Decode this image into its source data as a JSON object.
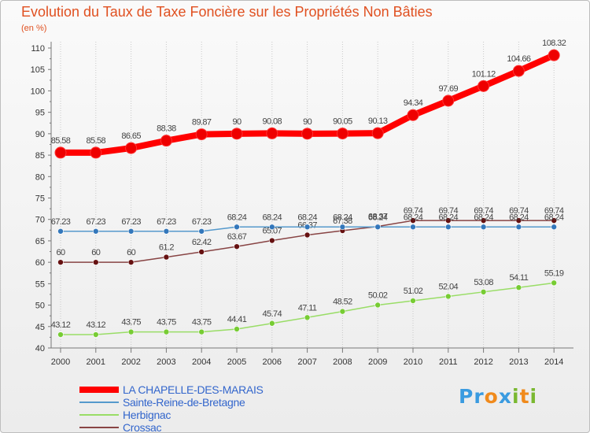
{
  "title": "Evolution du Taux de Taxe Foncière sur les Propriétés Non Bâties",
  "unit": "(en %)",
  "logo": {
    "parts": [
      "Pr",
      "o",
      "x",
      "i",
      "t",
      "i"
    ]
  },
  "chart_data": {
    "type": "line",
    "title": "Evolution du Taux de Taxe Foncière sur les Propriétés Non Bâties",
    "ylabel": "(en %)",
    "xlabel": "",
    "ylim": [
      40,
      110
    ],
    "yticks": [
      40,
      45,
      50,
      55,
      60,
      65,
      70,
      75,
      80,
      85,
      90,
      95,
      100,
      105,
      110
    ],
    "grid": "vertical dotted",
    "legend_position": "bottom-left",
    "categories": [
      "2000",
      "2001",
      "2002",
      "2003",
      "2004",
      "2005",
      "2006",
      "2007",
      "2008",
      "2009",
      "2010",
      "2011",
      "2012",
      "2013",
      "2014"
    ],
    "series": [
      {
        "name": "LA CHAPELLE-DES-MARAIS",
        "color": "#ff0000",
        "marker": "#ee0000",
        "thick": true,
        "values": [
          85.58,
          85.58,
          86.65,
          88.38,
          89.87,
          90,
          90.08,
          90,
          90.05,
          90.13,
          94.34,
          97.69,
          101.12,
          104.66,
          108.32
        ],
        "labels": [
          "85.58",
          "85.58",
          "86.65",
          "88.38",
          "89.87",
          "90",
          "90.08",
          "90",
          "90.05",
          "90.13",
          "94.34",
          "97.69",
          "101.12",
          "104.66",
          "108.32"
        ]
      },
      {
        "name": "Sainte-Reine-de-Bretagne",
        "color": "#5599cc",
        "marker": "#3377bb",
        "thick": false,
        "values": [
          67.23,
          67.23,
          67.23,
          67.23,
          67.23,
          68.24,
          68.24,
          68.24,
          68.24,
          68.24,
          68.24,
          68.24,
          68.24,
          68.24,
          68.24
        ],
        "labels": [
          "67.23",
          "67.23",
          "67.23",
          "67.23",
          "67.23",
          "68.24",
          "68.24",
          "68.24",
          "68.24",
          "68.24",
          "68.24",
          "68.24",
          "68.24",
          "68.24",
          "68.24"
        ]
      },
      {
        "name": "Herbignac",
        "color": "#99dd66",
        "marker": "#77cc33",
        "thick": false,
        "values": [
          43.12,
          43.12,
          43.75,
          43.75,
          43.75,
          44.41,
          45.74,
          47.11,
          48.52,
          50.02,
          51.02,
          52.04,
          53.08,
          54.11,
          55.19
        ],
        "labels": [
          "43.12",
          "43.12",
          "43.75",
          "43.75",
          "43.75",
          "44.41",
          "45.74",
          "47.11",
          "48.52",
          "50.02",
          "51.02",
          "52.04",
          "53.08",
          "54.11",
          "55.19"
        ]
      },
      {
        "name": "Crossac",
        "color": "#884444",
        "marker": "#661111",
        "thick": false,
        "values": [
          60,
          60,
          60,
          61.2,
          62.42,
          63.67,
          65.07,
          66.37,
          67.38,
          68.37,
          69.74,
          69.74,
          69.74,
          69.74,
          69.74
        ],
        "labels": [
          "60",
          "60",
          "60",
          "61.2",
          "62.42",
          "63.67",
          "65.07",
          "66.37",
          "67.38",
          "68.37",
          "69.74",
          "69.74",
          "69.74",
          "69.74",
          "69.74"
        ]
      }
    ]
  }
}
